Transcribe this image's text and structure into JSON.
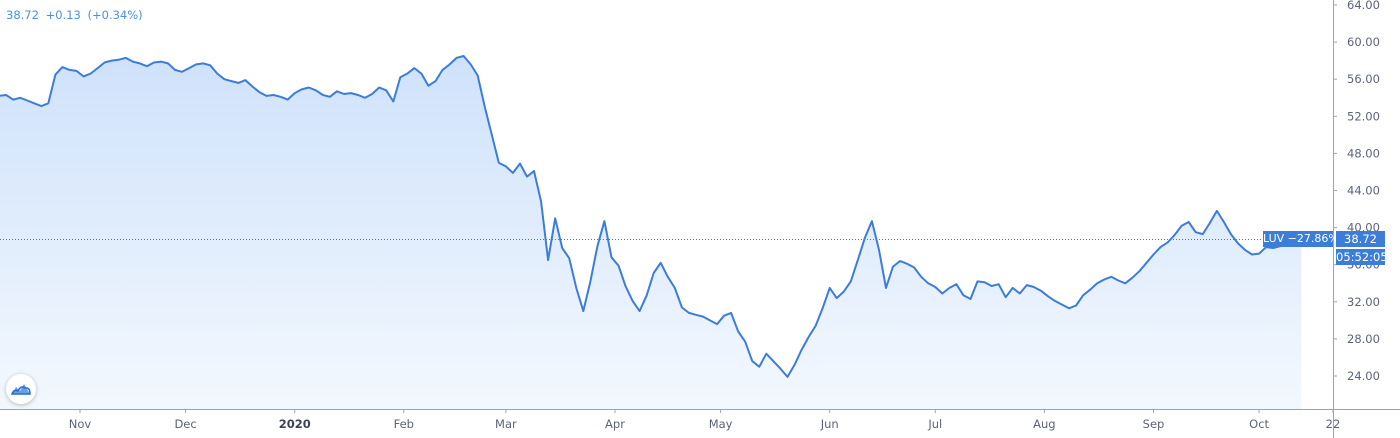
{
  "header": {
    "last": "38.72",
    "change": "+0.13",
    "change_pct": "(+0.34%)"
  },
  "price_label": "38.72",
  "countdown": "05:52:05",
  "symbol_label": "LUV −27.86%",
  "colors": {
    "line": "#3b7dd8",
    "fill_top": "#cfe2fb",
    "fill_bottom": "#f3f8fe",
    "axis": "#5b6478",
    "tag": "#3b7dd8"
  },
  "icons": {
    "logo": "tradingview-cloud-icon"
  },
  "chart_data": {
    "type": "area",
    "title": "",
    "xlabel": "",
    "ylabel": "",
    "ylim": [
      21,
      64
    ],
    "grid": false,
    "y_ticks": [
      "24.00",
      "28.00",
      "32.00",
      "36.00",
      "40.00",
      "44.00",
      "48.00",
      "52.00",
      "56.00",
      "60.00",
      "64.00"
    ],
    "y_tick_values": [
      24,
      28,
      32,
      36,
      40,
      44,
      48,
      52,
      56,
      60,
      64
    ],
    "x_ticks": [
      "Nov",
      "Dec",
      "2020",
      "Feb",
      "Mar",
      "Apr",
      "May",
      "Jun",
      "Jul",
      "Aug",
      "Sep",
      "Oct",
      "22"
    ],
    "x_tick_dates": [
      "2019-11-01",
      "2019-12-01",
      "2020-01-01",
      "2020-02-01",
      "2020-03-01",
      "2020-04-01",
      "2020-05-01",
      "2020-06-01",
      "2020-07-01",
      "2020-08-01",
      "2020-09-01",
      "2020-10-01",
      "2020-10-22"
    ],
    "x_range": [
      "2019-10-07",
      "2020-10-22"
    ],
    "last_value": 38.72,
    "series": [
      {
        "name": "LUV",
        "points": [
          [
            "2019-10-07",
            54.0
          ],
          [
            "2019-10-09",
            54.2
          ],
          [
            "2019-10-11",
            54.3
          ],
          [
            "2019-10-13",
            53.8
          ],
          [
            "2019-10-15",
            54.0
          ],
          [
            "2019-10-17",
            53.7
          ],
          [
            "2019-10-19",
            53.4
          ],
          [
            "2019-10-21",
            53.1
          ],
          [
            "2019-10-23",
            53.4
          ],
          [
            "2019-10-25",
            56.5
          ],
          [
            "2019-10-27",
            57.3
          ],
          [
            "2019-10-29",
            57.0
          ],
          [
            "2019-10-31",
            56.9
          ],
          [
            "2019-11-02",
            56.3
          ],
          [
            "2019-11-04",
            56.6
          ],
          [
            "2019-11-06",
            57.2
          ],
          [
            "2019-11-08",
            57.8
          ],
          [
            "2019-11-10",
            58.0
          ],
          [
            "2019-11-12",
            58.1
          ],
          [
            "2019-11-14",
            58.3
          ],
          [
            "2019-11-16",
            57.9
          ],
          [
            "2019-11-18",
            57.7
          ],
          [
            "2019-11-20",
            57.4
          ],
          [
            "2019-11-22",
            57.8
          ],
          [
            "2019-11-24",
            57.9
          ],
          [
            "2019-11-26",
            57.7
          ],
          [
            "2019-11-28",
            57.0
          ],
          [
            "2019-11-30",
            56.8
          ],
          [
            "2019-12-02",
            57.2
          ],
          [
            "2019-12-04",
            57.6
          ],
          [
            "2019-12-06",
            57.7
          ],
          [
            "2019-12-08",
            57.5
          ],
          [
            "2019-12-10",
            56.6
          ],
          [
            "2019-12-12",
            56.0
          ],
          [
            "2019-12-14",
            55.8
          ],
          [
            "2019-12-16",
            55.6
          ],
          [
            "2019-12-18",
            55.9
          ],
          [
            "2019-12-20",
            55.2
          ],
          [
            "2019-12-22",
            54.6
          ],
          [
            "2019-12-24",
            54.2
          ],
          [
            "2019-12-26",
            54.3
          ],
          [
            "2019-12-28",
            54.1
          ],
          [
            "2019-12-30",
            53.8
          ],
          [
            "2020-01-01",
            54.5
          ],
          [
            "2020-01-03",
            54.9
          ],
          [
            "2020-01-05",
            55.1
          ],
          [
            "2020-01-07",
            54.8
          ],
          [
            "2020-01-09",
            54.3
          ],
          [
            "2020-01-11",
            54.1
          ],
          [
            "2020-01-13",
            54.7
          ],
          [
            "2020-01-15",
            54.4
          ],
          [
            "2020-01-17",
            54.5
          ],
          [
            "2020-01-19",
            54.3
          ],
          [
            "2020-01-21",
            54.0
          ],
          [
            "2020-01-23",
            54.4
          ],
          [
            "2020-01-25",
            55.1
          ],
          [
            "2020-01-27",
            54.8
          ],
          [
            "2020-01-29",
            53.6
          ],
          [
            "2020-01-31",
            56.2
          ],
          [
            "2020-02-02",
            56.6
          ],
          [
            "2020-02-04",
            57.2
          ],
          [
            "2020-02-06",
            56.6
          ],
          [
            "2020-02-08",
            55.3
          ],
          [
            "2020-02-10",
            55.8
          ],
          [
            "2020-02-12",
            57.0
          ],
          [
            "2020-02-14",
            57.6
          ],
          [
            "2020-02-16",
            58.3
          ],
          [
            "2020-02-18",
            58.5
          ],
          [
            "2020-02-20",
            57.6
          ],
          [
            "2020-02-22",
            56.4
          ],
          [
            "2020-02-24",
            53.0
          ],
          [
            "2020-02-26",
            50.0
          ],
          [
            "2020-02-28",
            47.0
          ],
          [
            "2020-03-01",
            46.6
          ],
          [
            "2020-03-03",
            45.9
          ],
          [
            "2020-03-05",
            46.9
          ],
          [
            "2020-03-07",
            45.5
          ],
          [
            "2020-03-09",
            46.1
          ],
          [
            "2020-03-11",
            42.8
          ],
          [
            "2020-03-13",
            36.5
          ],
          [
            "2020-03-15",
            41.0
          ],
          [
            "2020-03-17",
            37.8
          ],
          [
            "2020-03-19",
            36.7
          ],
          [
            "2020-03-21",
            33.5
          ],
          [
            "2020-03-23",
            31.0
          ],
          [
            "2020-03-25",
            34.2
          ],
          [
            "2020-03-27",
            38.0
          ],
          [
            "2020-03-29",
            40.7
          ],
          [
            "2020-03-31",
            36.8
          ],
          [
            "2020-04-02",
            35.9
          ],
          [
            "2020-04-04",
            33.7
          ],
          [
            "2020-04-06",
            32.1
          ],
          [
            "2020-04-08",
            31.0
          ],
          [
            "2020-04-10",
            32.7
          ],
          [
            "2020-04-12",
            35.1
          ],
          [
            "2020-04-14",
            36.2
          ],
          [
            "2020-04-16",
            34.7
          ],
          [
            "2020-04-18",
            33.5
          ],
          [
            "2020-04-20",
            31.4
          ],
          [
            "2020-04-22",
            30.8
          ],
          [
            "2020-04-24",
            30.6
          ],
          [
            "2020-04-26",
            30.4
          ],
          [
            "2020-04-28",
            30.0
          ],
          [
            "2020-04-30",
            29.6
          ],
          [
            "2020-05-02",
            30.5
          ],
          [
            "2020-05-04",
            30.8
          ],
          [
            "2020-05-06",
            28.8
          ],
          [
            "2020-05-08",
            27.7
          ],
          [
            "2020-05-10",
            25.6
          ],
          [
            "2020-05-12",
            25.0
          ],
          [
            "2020-05-14",
            26.4
          ],
          [
            "2020-05-16",
            25.6
          ],
          [
            "2020-05-18",
            24.8
          ],
          [
            "2020-05-20",
            23.9
          ],
          [
            "2020-05-22",
            25.2
          ],
          [
            "2020-05-24",
            26.8
          ],
          [
            "2020-05-26",
            28.2
          ],
          [
            "2020-05-28",
            29.4
          ],
          [
            "2020-05-30",
            31.3
          ],
          [
            "2020-06-01",
            33.5
          ],
          [
            "2020-06-03",
            32.4
          ],
          [
            "2020-06-05",
            33.1
          ],
          [
            "2020-06-07",
            34.2
          ],
          [
            "2020-06-09",
            36.5
          ],
          [
            "2020-06-11",
            38.9
          ],
          [
            "2020-06-13",
            40.7
          ],
          [
            "2020-06-15",
            37.6
          ],
          [
            "2020-06-17",
            33.5
          ],
          [
            "2020-06-19",
            35.8
          ],
          [
            "2020-06-21",
            36.4
          ],
          [
            "2020-06-23",
            36.1
          ],
          [
            "2020-06-25",
            35.7
          ],
          [
            "2020-06-27",
            34.7
          ],
          [
            "2020-06-29",
            34.0
          ],
          [
            "2020-07-01",
            33.6
          ],
          [
            "2020-07-03",
            32.9
          ],
          [
            "2020-07-05",
            33.5
          ],
          [
            "2020-07-07",
            33.9
          ],
          [
            "2020-07-09",
            32.7
          ],
          [
            "2020-07-11",
            32.3
          ],
          [
            "2020-07-13",
            34.2
          ],
          [
            "2020-07-15",
            34.1
          ],
          [
            "2020-07-17",
            33.7
          ],
          [
            "2020-07-19",
            33.9
          ],
          [
            "2020-07-21",
            32.5
          ],
          [
            "2020-07-23",
            33.5
          ],
          [
            "2020-07-25",
            32.9
          ],
          [
            "2020-07-27",
            33.8
          ],
          [
            "2020-07-29",
            33.6
          ],
          [
            "2020-07-31",
            33.2
          ],
          [
            "2020-08-02",
            32.6
          ],
          [
            "2020-08-04",
            32.1
          ],
          [
            "2020-08-06",
            31.7
          ],
          [
            "2020-08-08",
            31.3
          ],
          [
            "2020-08-10",
            31.6
          ],
          [
            "2020-08-12",
            32.7
          ],
          [
            "2020-08-14",
            33.3
          ],
          [
            "2020-08-16",
            34.0
          ],
          [
            "2020-08-18",
            34.4
          ],
          [
            "2020-08-20",
            34.7
          ],
          [
            "2020-08-22",
            34.3
          ],
          [
            "2020-08-24",
            34.0
          ],
          [
            "2020-08-26",
            34.6
          ],
          [
            "2020-08-28",
            35.3
          ],
          [
            "2020-08-30",
            36.2
          ],
          [
            "2020-09-01",
            37.1
          ],
          [
            "2020-09-03",
            37.9
          ],
          [
            "2020-09-05",
            38.4
          ],
          [
            "2020-09-07",
            39.2
          ],
          [
            "2020-09-09",
            40.2
          ],
          [
            "2020-09-11",
            40.6
          ],
          [
            "2020-09-13",
            39.5
          ],
          [
            "2020-09-15",
            39.3
          ],
          [
            "2020-09-17",
            40.5
          ],
          [
            "2020-09-19",
            41.8
          ],
          [
            "2020-09-21",
            40.6
          ],
          [
            "2020-09-23",
            39.3
          ],
          [
            "2020-09-25",
            38.3
          ],
          [
            "2020-09-27",
            37.6
          ],
          [
            "2020-09-29",
            37.1
          ],
          [
            "2020-10-01",
            37.2
          ],
          [
            "2020-10-03",
            37.9
          ],
          [
            "2020-10-05",
            37.8
          ],
          [
            "2020-10-07",
            38.0
          ],
          [
            "2020-10-09",
            38.2
          ],
          [
            "2020-10-11",
            38.3
          ],
          [
            "2020-10-13",
            38.72
          ]
        ]
      }
    ]
  }
}
